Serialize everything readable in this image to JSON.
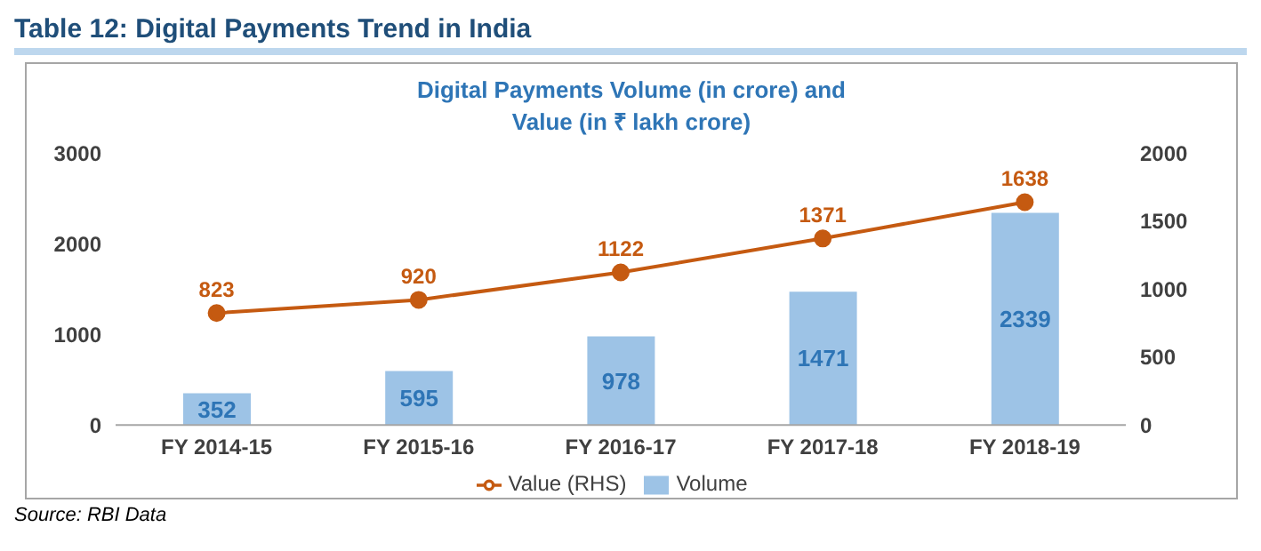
{
  "chart_data": {
    "type": "bar",
    "title": "Table 12: Digital Payments Trend in India",
    "subtitle": "Digital Payments Volume (in crore) and Value (in ₹ lakh crore)",
    "categories": [
      "FY 2014-15",
      "FY 2015-16",
      "FY 2016-17",
      "FY 2017-18",
      "FY 2018-19"
    ],
    "series": [
      {
        "name": "Volume",
        "color": "#9dc3e6",
        "values": [
          352,
          595,
          978,
          1471,
          2339
        ]
      },
      {
        "name": "Value (RHS)",
        "type": "line",
        "axis": "y2",
        "color": "#c55a11",
        "values": [
          823,
          920,
          1122,
          1371,
          1638
        ]
      }
    ],
    "ylim": [
      0,
      3000
    ],
    "yticks": [
      0,
      1000,
      2000,
      3000
    ],
    "y2lim": [
      0,
      2000
    ],
    "y2ticks": [
      0,
      500,
      1000,
      1500,
      2000
    ],
    "data_labels": true,
    "grid": false,
    "legend": "bottom",
    "marker": "circle",
    "line_style": "solid",
    "annotations": [
      "Source: RBI Data"
    ]
  }
}
